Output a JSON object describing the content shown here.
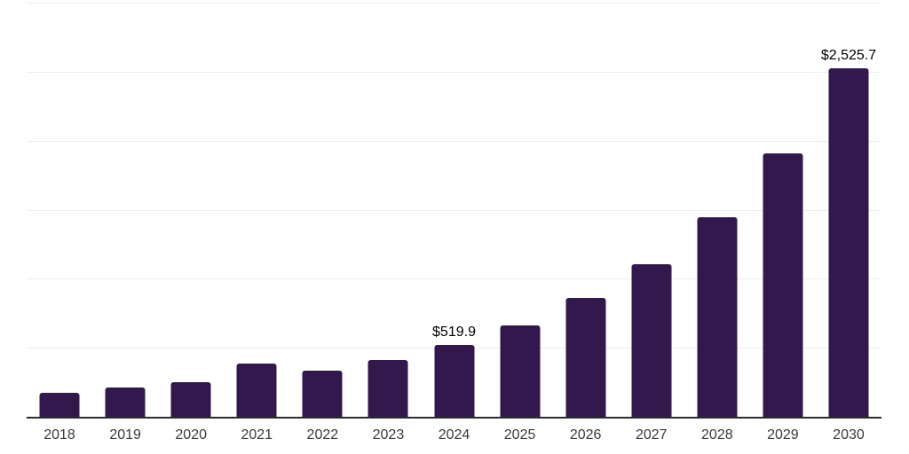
{
  "chart": {
    "bar_color": "#33184d",
    "grid_color": "#ededed",
    "axis_color": "#2b2b2b",
    "tick_label_color": "#3a3a3a",
    "data_label_color": "#000000"
  },
  "chart_data": {
    "type": "bar",
    "title": "",
    "xlabel": "",
    "ylabel": "",
    "categories": [
      "2018",
      "2019",
      "2020",
      "2021",
      "2022",
      "2023",
      "2024",
      "2025",
      "2026",
      "2027",
      "2028",
      "2029",
      "2030"
    ],
    "values": [
      175,
      213,
      252,
      387,
      332,
      411,
      519.9,
      659,
      861,
      1106,
      1444,
      1906,
      2525.7
    ],
    "data_labels": [
      "",
      "",
      "",
      "",
      "",
      "",
      "$519.9",
      "",
      "",
      "",
      "",
      "",
      "$2,525.7"
    ],
    "ylim": [
      0,
      3000
    ],
    "grid_interval": 500,
    "grid": true,
    "legend": false,
    "y_axis_ticks_visible": false
  }
}
